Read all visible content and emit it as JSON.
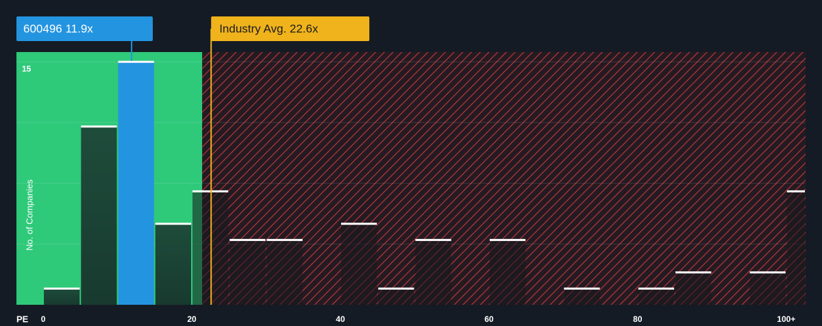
{
  "chart_data": {
    "type": "histogram",
    "x_label": "PE",
    "y_label": "No. of Companies",
    "bins": [
      0,
      5,
      10,
      15,
      20,
      25,
      30,
      35,
      40,
      45,
      50,
      55,
      60,
      65,
      70,
      75,
      80,
      85,
      90,
      95,
      100,
      105
    ],
    "values": [
      1,
      11,
      15,
      5,
      7,
      4,
      4,
      0,
      5,
      1,
      4,
      0,
      4,
      0,
      1,
      0,
      1,
      2,
      0,
      2,
      7
    ],
    "highlight_bin": 2,
    "highlight_color": "#2394e0",
    "xlim": [
      -3.6,
      102.6
    ],
    "ylim": [
      0,
      15.6
    ],
    "xticks": [
      0,
      20,
      40,
      60,
      80,
      {
        "value": 100,
        "label": "100+"
      }
    ],
    "yticks": [
      15
    ],
    "gridlines": [
      3.75,
      7.5,
      11.25,
      15
    ],
    "company": {
      "label": "600496 11.9x",
      "value": 11.9,
      "color": "#2394e0"
    },
    "industry_avg": {
      "label": "Industry Avg. 22.6x",
      "value": 22.6,
      "color": "#f0b31c"
    }
  }
}
